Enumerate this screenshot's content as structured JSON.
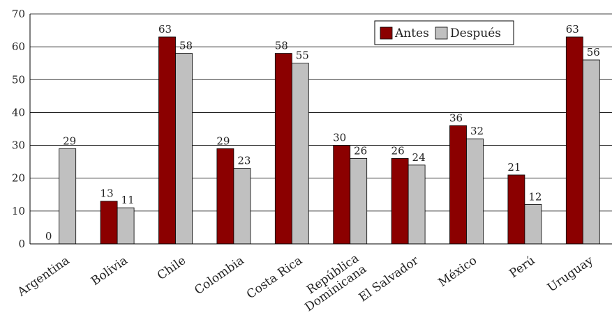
{
  "chart_data": {
    "type": "bar",
    "categories": [
      "Argentina",
      "Bolivia",
      "Chile",
      "Colombia",
      "Costa Rica",
      "República\nDominicana",
      "El Salvador",
      "México",
      "Perú",
      "Uruguay"
    ],
    "series": [
      {
        "name": "Antes",
        "color": "#8b0000",
        "values": [
          0,
          13,
          63,
          29,
          58,
          30,
          26,
          36,
          21,
          63
        ]
      },
      {
        "name": "Después",
        "color": "#c0c0c0",
        "values": [
          29,
          11,
          58,
          23,
          55,
          26,
          24,
          32,
          12,
          56
        ]
      }
    ],
    "ylim": [
      0,
      70
    ],
    "yticks": [
      0,
      10,
      20,
      30,
      40,
      50,
      60,
      70
    ],
    "grid": true,
    "legend_position": "top-right"
  }
}
